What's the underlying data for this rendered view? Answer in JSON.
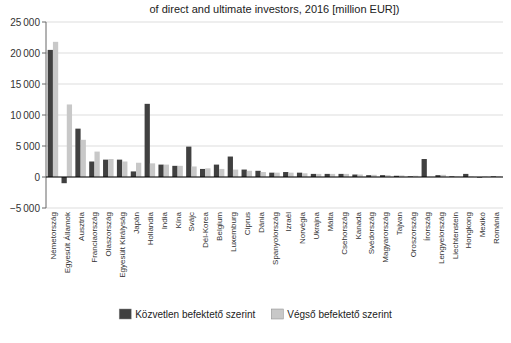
{
  "chart_data": {
    "type": "bar",
    "title": "of direct and ultimate investors, 2016 [million EUR])",
    "categories": [
      "Németország",
      "Egyesült Államok",
      "Ausztria",
      "Franciaország",
      "Olaszország",
      "Egyesült Királyság",
      "Japán",
      "Hollandia",
      "India",
      "Kína",
      "Svájc",
      "Dél-Korea",
      "Belgium",
      "Luxemburg",
      "Ciprus",
      "Dánia",
      "Spanyolország",
      "Izraël",
      "Norvégia",
      "Ukrajna",
      "Málta",
      "Csehország",
      "Kanada",
      "Svédország",
      "Magyarország",
      "Tajvan",
      "Oroszország",
      "Írország",
      "Lengyelország",
      "Liechtenstein",
      "Hongkong",
      "Mexikó",
      "Románia"
    ],
    "series": [
      {
        "name": "Közvetlen befektető szerint",
        "color": "#404040",
        "values": [
          20500,
          -1000,
          7800,
          2500,
          2800,
          2800,
          900,
          11800,
          2000,
          1800,
          4900,
          1300,
          2000,
          3300,
          1200,
          1000,
          700,
          800,
          700,
          500,
          500,
          500,
          400,
          300,
          300,
          200,
          100,
          2900,
          300,
          100,
          500,
          -100,
          100
        ]
      },
      {
        "name": "Végső befektető szerint",
        "color": "#c8c8c8",
        "values": [
          21800,
          11700,
          6000,
          4100,
          2900,
          2500,
          2300,
          2200,
          2000,
          1800,
          1700,
          1400,
          1300,
          1200,
          1000,
          800,
          700,
          700,
          600,
          500,
          500,
          500,
          400,
          350,
          300,
          250,
          200,
          0,
          350,
          100,
          100,
          100,
          100
        ]
      }
    ],
    "ylim": [
      -5000,
      25000
    ],
    "yticks": [
      {
        "value": -5000,
        "label": "−5 000"
      },
      0,
      {
        "value": 5000,
        "label": "5 000"
      },
      {
        "value": 10000,
        "label": "10 000"
      },
      {
        "value": 15000,
        "label": "15 000"
      },
      {
        "value": 20000,
        "label": "20 000"
      },
      {
        "value": 25000,
        "label": "25 000"
      }
    ],
    "grid": true,
    "legend": "bottom"
  }
}
